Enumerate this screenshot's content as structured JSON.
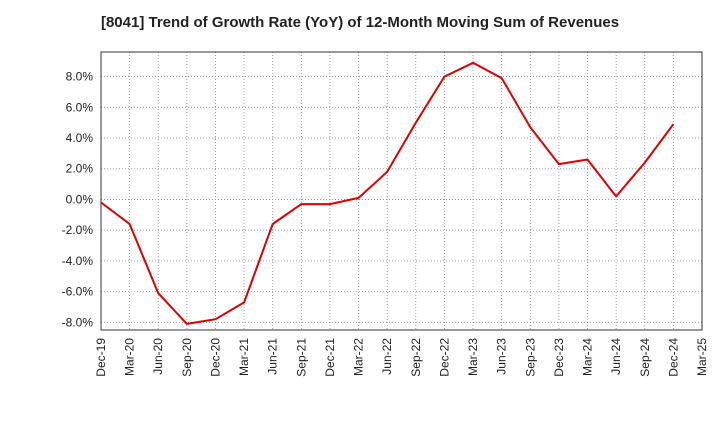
{
  "chart_data": {
    "type": "line",
    "title": "[8041]  Trend of Growth Rate (YoY) of 12-Month Moving Sum of Revenues",
    "xlabel": "",
    "ylabel": "",
    "categories": [
      "Dec-19",
      "Mar-20",
      "Jun-20",
      "Sep-20",
      "Dec-20",
      "Mar-21",
      "Jun-21",
      "Sep-21",
      "Dec-21",
      "Mar-22",
      "Jun-22",
      "Sep-22",
      "Dec-22",
      "Mar-23",
      "Jun-23",
      "Sep-23",
      "Dec-23",
      "Mar-24",
      "Jun-24",
      "Sep-24",
      "Dec-24",
      "Mar-25"
    ],
    "series": [
      {
        "color": "#e00000",
        "values": [
          -0.2,
          -1.6,
          -6.1,
          -8.1,
          -7.8,
          -6.7,
          -1.6,
          -0.3,
          -0.3,
          0.1,
          1.8,
          5.0,
          8.0,
          8.9,
          7.9,
          4.7,
          2.3,
          2.6,
          0.2,
          2.4,
          4.9,
          null
        ]
      }
    ],
    "ylim": [
      -8.5,
      9.6
    ],
    "yticks": [
      -8,
      -6,
      -4,
      -2,
      0,
      2,
      4,
      6,
      8
    ],
    "ytick_labels": [
      "-8.0%",
      "-6.0%",
      "-4.0%",
      "-2.0%",
      "0.0%",
      "2.0%",
      "4.0%",
      "6.0%",
      "8.0%"
    ],
    "grid": true,
    "legend": "none"
  }
}
